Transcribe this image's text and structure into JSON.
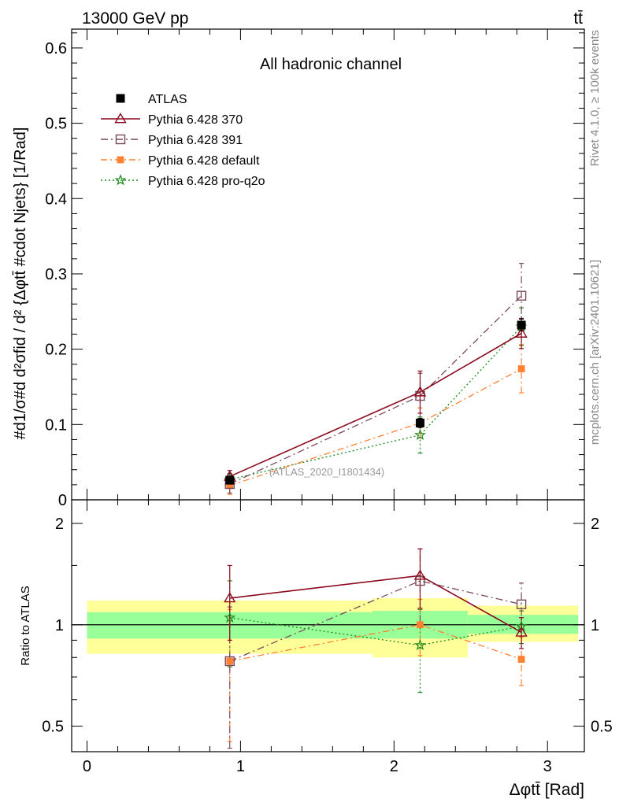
{
  "header": {
    "left": "13000 GeV pp",
    "right": "tt̄"
  },
  "side_text": {
    "rivet": "Rivet 4.1.0, ≥ 100k events",
    "mcplots": "mcplots.cern.ch [arXiv:2401.10621]"
  },
  "colors": {
    "atlas": "#000000",
    "p370": "#8b0a1e",
    "p391": "#7a4a5a",
    "pdefault": "#ff8030",
    "pq2o": "#1a8a1a",
    "band_inner": "#99ff99",
    "band_outer": "#ffff99"
  },
  "chart_data": [
    {
      "type": "scatter",
      "title": "All hadronic channel",
      "watermark": "(ATLAS_2020_I1801434)",
      "ylabel": "#d\\frac{1}{\\sigma}#d\\frac{d^2\\sigma^{fid}}{d^2 {\\Delta\\phi^{t\\bar{t}} #cdot N_{jets}} [1/Rad]",
      "ylabel_display": "#d1/σ#d d²σfid / d² {Δφtt̄ #cdot Njets} [1/Rad]",
      "xlim": [
        -0.1,
        3.24
      ],
      "ylim": [
        0,
        0.625
      ],
      "yticks": [
        {
          "value": 0,
          "label": "0"
        },
        {
          "value": 0.1,
          "label": "0.1"
        },
        {
          "value": 0.2,
          "label": "0.2"
        },
        {
          "value": 0.3,
          "label": "0.3"
        },
        {
          "value": 0.4,
          "label": "0.4"
        },
        {
          "value": 0.5,
          "label": "0.5"
        },
        {
          "value": 0.6,
          "label": "0.6"
        }
      ],
      "legend": [
        {
          "key": "atlas",
          "label": "ATLAS"
        },
        {
          "key": "p370",
          "label": "Pythia 6.428 370"
        },
        {
          "key": "p391",
          "label": "Pythia 6.428 391"
        },
        {
          "key": "pdefault",
          "label": "Pythia 6.428 default"
        },
        {
          "key": "pq2o",
          "label": "Pythia 6.428 pro-q2o"
        }
      ],
      "x": [
        0.93,
        2.17,
        2.83
      ],
      "series": [
        {
          "key": "atlas",
          "name": "ATLAS",
          "values": [
            0.026,
            0.102,
            0.232
          ],
          "err": [
            0.003,
            0.006,
            0.008
          ]
        },
        {
          "key": "p370",
          "name": "Pythia 6.428 370",
          "values": [
            0.031,
            0.143,
            0.221
          ],
          "err": [
            0.008,
            0.028,
            0.02
          ]
        },
        {
          "key": "p391",
          "name": "Pythia 6.428 391",
          "values": [
            0.021,
            0.138,
            0.271
          ],
          "err": [
            0.012,
            0.03,
            0.043
          ]
        },
        {
          "key": "pdefault",
          "name": "Pythia 6.428 default",
          "values": [
            0.019,
            0.102,
            0.174
          ],
          "err": [
            0.012,
            0.02,
            0.032
          ]
        },
        {
          "key": "pq2o",
          "name": "Pythia 6.428 pro-q2o",
          "values": [
            0.027,
            0.086,
            0.23
          ],
          "err": [
            0.008,
            0.024,
            0.025
          ]
        }
      ]
    },
    {
      "type": "scatter",
      "ylabel": "Ratio to ATLAS",
      "xlabel": "Δφtt̄ [Rad]",
      "xlim": [
        -0.1,
        3.24
      ],
      "ylim": [
        0.42,
        2.35
      ],
      "log_y": true,
      "yticks": [
        {
          "value": 0.5,
          "label": "0.5"
        },
        {
          "value": 1,
          "label": "1"
        },
        {
          "value": 2,
          "label": "2"
        }
      ],
      "xticks": [
        {
          "value": 0,
          "label": "0"
        },
        {
          "value": 1,
          "label": "1"
        },
        {
          "value": 2,
          "label": "2"
        },
        {
          "value": 3,
          "label": "3"
        }
      ],
      "bands": [
        {
          "x0": 0,
          "x1": 1.86,
          "inner": [
            0.91,
            1.09
          ],
          "outer": [
            0.82,
            1.18
          ]
        },
        {
          "x0": 1.86,
          "x1": 2.48,
          "inner": [
            0.91,
            1.1
          ],
          "outer": [
            0.8,
            1.2
          ]
        },
        {
          "x0": 2.48,
          "x1": 3.2,
          "inner": [
            0.94,
            1.07
          ],
          "outer": [
            0.89,
            1.14
          ]
        }
      ],
      "x": [
        0.93,
        2.17,
        2.83
      ],
      "series": [
        {
          "key": "p370",
          "values": [
            1.2,
            1.4,
            0.95
          ],
          "err": [
            0.3,
            0.28,
            0.1
          ]
        },
        {
          "key": "p391",
          "values": [
            0.78,
            1.35,
            1.15
          ],
          "err": [
            0.35,
            0.33,
            0.18
          ]
        },
        {
          "key": "pdefault",
          "values": [
            0.78,
            1.0,
            0.79
          ],
          "err": [
            0.33,
            0.19,
            0.13
          ]
        },
        {
          "key": "pq2o",
          "values": [
            1.05,
            0.87,
            0.99
          ],
          "err": [
            0.3,
            0.24,
            0.11
          ]
        }
      ]
    }
  ]
}
